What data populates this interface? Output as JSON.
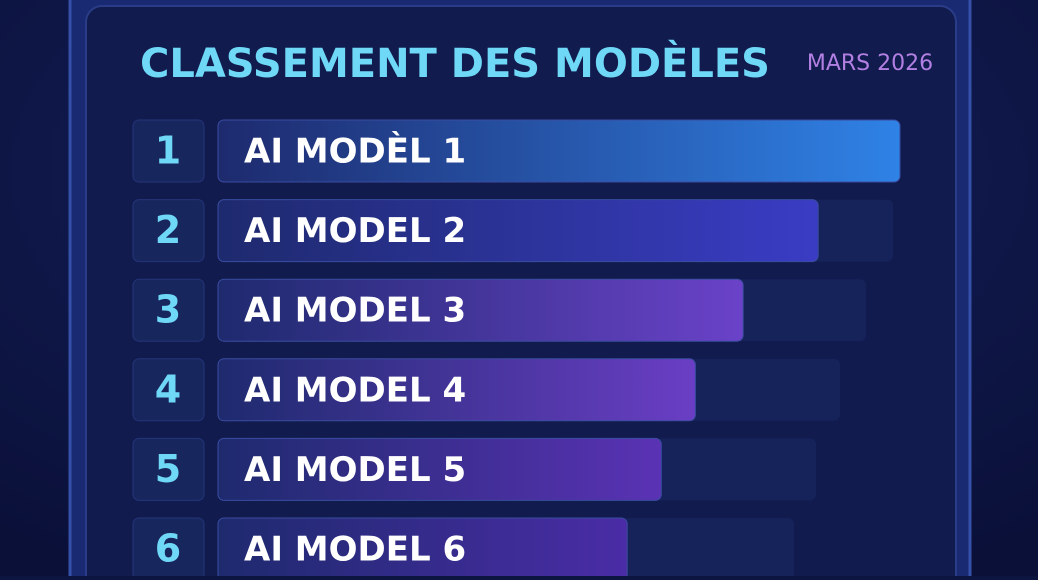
{
  "header": {
    "title": "CLASSEMENT DES MODÈLES",
    "date": "MARS 2026"
  },
  "rows": [
    {
      "rank": "1",
      "name": "AI MODÈL 1",
      "value": 100,
      "color": "#2f82e6"
    },
    {
      "rank": "2",
      "name": "AI MODEL 2",
      "value": 88,
      "color": "#3a3cc4"
    },
    {
      "rank": "3",
      "name": "AI MODEL 3",
      "value": 77,
      "color": "#6a42c8"
    },
    {
      "rank": "4",
      "name": "AI MODEL 4",
      "value": 70,
      "color": "#6a3ec4"
    },
    {
      "rank": "5",
      "name": "AI MODEL 5",
      "value": 65,
      "color": "#5a32b4"
    },
    {
      "rank": "6",
      "name": "AI MODEL 6",
      "value": 60,
      "color": "#4a2ca6"
    }
  ]
}
